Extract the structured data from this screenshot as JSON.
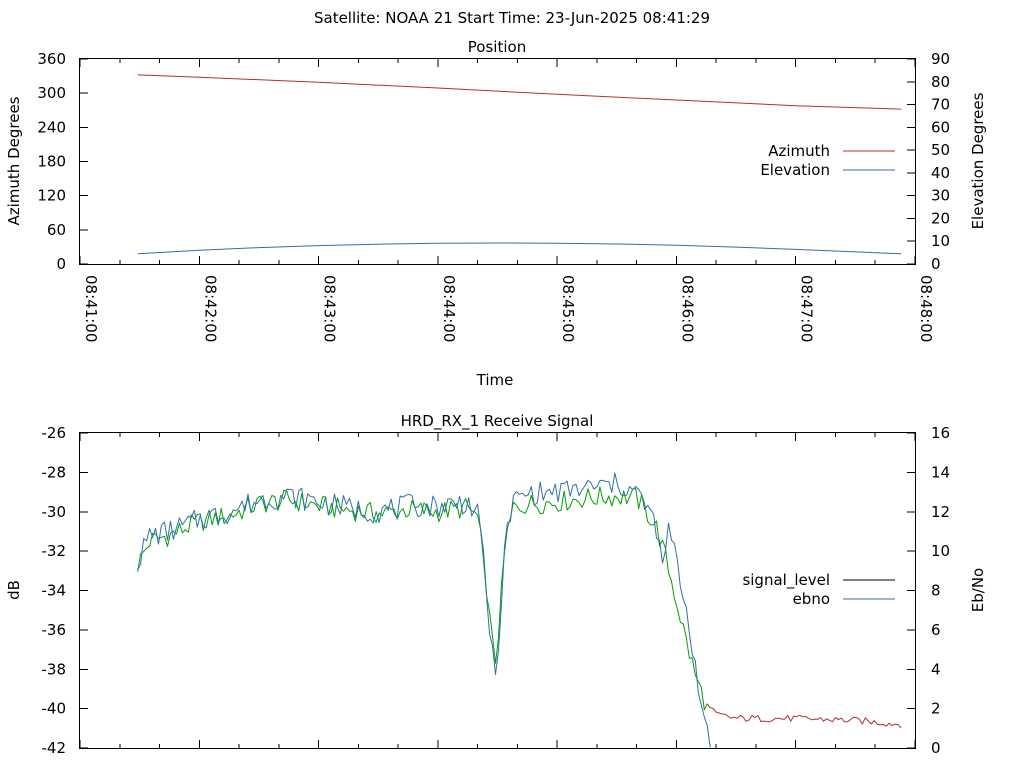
{
  "header": {
    "title": "Satellite: NOAA 21    Start Time: 23-Jun-2025 08:41:29"
  },
  "colors": {
    "azimuth": "#b03030",
    "elevation": "#2f6fa8",
    "signal_level": "#000000",
    "ebno": "#2f6fa8",
    "green_trace": "#00a000",
    "red_trace": "#b03030"
  },
  "chart_data": [
    {
      "type": "line",
      "title": "Position",
      "xlabel": "Time",
      "ylabel": "Azimuth Degrees",
      "y2label": "Elevation Degrees",
      "x_range": [
        "08:41:00",
        "08:48:00"
      ],
      "x_ticks": [
        "08:41:00",
        "08:42:00",
        "08:43:00",
        "08:44:00",
        "08:45:00",
        "08:46:00",
        "08:47:00",
        "08:48:00"
      ],
      "ylim": [
        0,
        360
      ],
      "y_ticks": [
        "0",
        "60",
        "120",
        "180",
        "240",
        "300",
        "360"
      ],
      "y2lim": [
        0,
        90
      ],
      "y2_ticks": [
        "0",
        "10",
        "20",
        "30",
        "40",
        "50",
        "60",
        "70",
        "80",
        "90"
      ],
      "legend_position": "right",
      "series": [
        {
          "name": "Azimuth",
          "axis": "y",
          "points": [
            [
              "08:41:29",
              332
            ],
            [
              "08:42:00",
              328
            ],
            [
              "08:43:00",
              319
            ],
            [
              "08:44:00",
              309
            ],
            [
              "08:45:00",
              298
            ],
            [
              "08:46:00",
              288
            ],
            [
              "08:47:00",
              278
            ],
            [
              "08:47:53",
              272
            ]
          ]
        },
        {
          "name": "Elevation",
          "axis": "y2",
          "points": [
            [
              "08:41:29",
              4.5
            ],
            [
              "08:42:00",
              6
            ],
            [
              "08:42:30",
              7.2
            ],
            [
              "08:43:00",
              8.1
            ],
            [
              "08:43:30",
              8.7
            ],
            [
              "08:44:00",
              9.1
            ],
            [
              "08:44:30",
              9.2
            ],
            [
              "08:45:00",
              9.1
            ],
            [
              "08:45:30",
              8.8
            ],
            [
              "08:46:00",
              8.2
            ],
            [
              "08:46:30",
              7.4
            ],
            [
              "08:47:00",
              6.4
            ],
            [
              "08:47:30",
              5.3
            ],
            [
              "08:47:53",
              4.5
            ]
          ]
        }
      ]
    },
    {
      "type": "line",
      "title": "HRD_RX_1 Receive Signal",
      "ylabel": "dB",
      "y2label": "Eb/No",
      "x_range": [
        "08:41:00",
        "08:48:00"
      ],
      "ylim": [
        -42,
        -26
      ],
      "y_ticks": [
        "-26",
        "-28",
        "-30",
        "-32",
        "-34",
        "-36",
        "-38",
        "-40",
        "-42"
      ],
      "y2lim": [
        0,
        16
      ],
      "y2_ticks": [
        "0",
        "2",
        "4",
        "6",
        "8",
        "10",
        "12",
        "14",
        "16"
      ],
      "legend_position": "right",
      "series": [
        {
          "name": "signal_level",
          "axis": "y",
          "points": [
            [
              "08:41:29",
              -32.7
            ],
            [
              "08:41:35",
              -31.5
            ],
            [
              "08:41:45",
              -31.2
            ],
            [
              "08:42:00",
              -30.5
            ],
            [
              "08:42:15",
              -30.2
            ],
            [
              "08:42:30",
              -29.6
            ],
            [
              "08:42:45",
              -29.4
            ],
            [
              "08:43:00",
              -29.7
            ],
            [
              "08:43:15",
              -29.9
            ],
            [
              "08:43:30",
              -30.1
            ],
            [
              "08:43:45",
              -29.9
            ],
            [
              "08:44:00",
              -30
            ],
            [
              "08:44:15",
              -29.8
            ],
            [
              "08:44:20",
              -30.3
            ],
            [
              "08:44:24",
              -33.2
            ],
            [
              "08:44:27",
              -36.5
            ],
            [
              "08:44:29",
              -37.5
            ],
            [
              "08:44:31",
              -35.5
            ],
            [
              "08:44:34",
              -31.5
            ],
            [
              "08:44:38",
              -29.8
            ],
            [
              "08:44:45",
              -29.6
            ],
            [
              "08:45:00",
              -29.5
            ],
            [
              "08:45:15",
              -29.3
            ],
            [
              "08:45:30",
              -29.2
            ],
            [
              "08:45:40",
              -29.3
            ],
            [
              "08:45:45",
              -30
            ],
            [
              "08:45:50",
              -30.8
            ],
            [
              "08:45:55",
              -32.5
            ],
            [
              "08:46:00",
              -34.5
            ],
            [
              "08:46:05",
              -36.6
            ],
            [
              "08:46:10",
              -38.5
            ],
            [
              "08:46:15",
              -39.8
            ],
            [
              "08:46:20",
              -40.3
            ],
            [
              "08:46:30",
              -40.5
            ],
            [
              "08:47:00",
              -40.5
            ],
            [
              "08:47:30",
              -40.6
            ],
            [
              "08:47:53",
              -40.8
            ]
          ]
        },
        {
          "name": "ebno",
          "axis": "y2",
          "points": [
            [
              "08:41:29",
              9.5
            ],
            [
              "08:41:35",
              10.8
            ],
            [
              "08:41:45",
              11
            ],
            [
              "08:42:00",
              11.6
            ],
            [
              "08:42:15",
              12
            ],
            [
              "08:42:30",
              12.6
            ],
            [
              "08:42:45",
              12.8
            ],
            [
              "08:43:00",
              12.5
            ],
            [
              "08:43:15",
              12.2
            ],
            [
              "08:43:30",
              12
            ],
            [
              "08:43:45",
              12.3
            ],
            [
              "08:44:00",
              12.3
            ],
            [
              "08:44:15",
              12.5
            ],
            [
              "08:44:20",
              11.8
            ],
            [
              "08:44:24",
              8.5
            ],
            [
              "08:44:27",
              5
            ],
            [
              "08:44:29",
              3.5
            ],
            [
              "08:44:31",
              6.2
            ],
            [
              "08:44:34",
              10.5
            ],
            [
              "08:44:38",
              12.6
            ],
            [
              "08:44:45",
              12.9
            ],
            [
              "08:45:00",
              13
            ],
            [
              "08:45:15",
              13.2
            ],
            [
              "08:45:30",
              13.4
            ],
            [
              "08:45:40",
              13
            ],
            [
              "08:45:45",
              12.2
            ],
            [
              "08:45:50",
              11.2
            ],
            [
              "08:45:53",
              9
            ],
            [
              "08:45:56",
              11.2
            ],
            [
              "08:46:00",
              9.5
            ],
            [
              "08:46:05",
              7
            ],
            [
              "08:46:10",
              4
            ],
            [
              "08:46:14",
              1.2
            ],
            [
              "08:46:17",
              0
            ]
          ]
        }
      ]
    }
  ]
}
